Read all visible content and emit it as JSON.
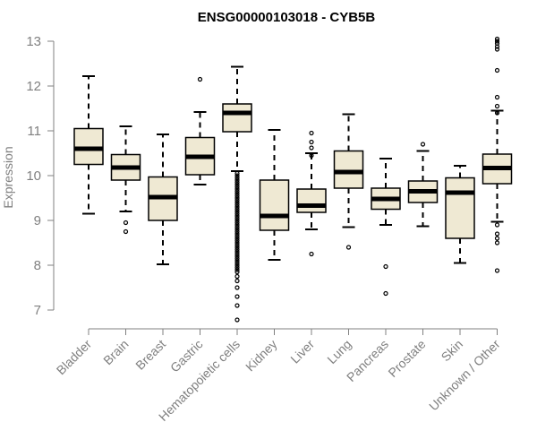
{
  "chart_data": {
    "type": "boxplot",
    "title": "ENSG00000103018 - CYB5B",
    "xlabel": "",
    "ylabel": "Expression",
    "ylim": [
      6.7,
      13.1
    ],
    "yticks": [
      7,
      8,
      9,
      10,
      11,
      12,
      13
    ],
    "grid": false,
    "colors": {
      "box_fill": "#efe9d3",
      "stroke": "#000000",
      "axis": "#808080"
    },
    "categories": [
      "Bladder",
      "Brain",
      "Breast",
      "Gastric",
      "Hematopoietic cells",
      "Kidney",
      "Liver",
      "Lung",
      "Pancreas",
      "Prostate",
      "Skin",
      "Unknown / Other"
    ],
    "boxes": [
      {
        "category": "Bladder",
        "whisker_low": 9.15,
        "q1": 10.25,
        "median": 10.6,
        "q3": 11.05,
        "whisker_high": 12.22,
        "outliers": []
      },
      {
        "category": "Brain",
        "whisker_low": 9.2,
        "q1": 9.9,
        "median": 10.18,
        "q3": 10.47,
        "whisker_high": 11.1,
        "outliers": [
          8.95,
          8.75
        ]
      },
      {
        "category": "Breast",
        "whisker_low": 8.02,
        "q1": 9.0,
        "median": 9.52,
        "q3": 9.97,
        "whisker_high": 10.92,
        "outliers": []
      },
      {
        "category": "Gastric",
        "whisker_low": 9.8,
        "q1": 10.02,
        "median": 10.42,
        "q3": 10.85,
        "whisker_high": 11.42,
        "outliers": [
          12.15
        ]
      },
      {
        "category": "Hematopoietic cells",
        "whisker_low": 10.1,
        "q1": 10.98,
        "median": 11.4,
        "q3": 11.6,
        "whisker_high": 12.43,
        "outliers": [
          10.05,
          10.0,
          9.95,
          9.9,
          9.85,
          9.8,
          9.75,
          9.7,
          9.65,
          9.6,
          9.55,
          9.5,
          9.45,
          9.4,
          9.35,
          9.3,
          9.25,
          9.2,
          9.15,
          9.1,
          9.05,
          9.0,
          8.95,
          8.9,
          8.85,
          8.8,
          8.75,
          8.7,
          8.65,
          8.6,
          8.55,
          8.5,
          8.45,
          8.4,
          8.35,
          8.3,
          8.25,
          8.2,
          8.15,
          8.1,
          8.05,
          8.0,
          7.95,
          7.9,
          7.85,
          7.75,
          7.65,
          7.5,
          7.3,
          7.1,
          6.78
        ]
      },
      {
        "category": "Kidney",
        "whisker_low": 8.12,
        "q1": 8.78,
        "median": 9.1,
        "q3": 9.9,
        "whisker_high": 11.02,
        "outliers": []
      },
      {
        "category": "Liver",
        "whisker_low": 8.8,
        "q1": 9.18,
        "median": 9.33,
        "q3": 9.7,
        "whisker_high": 10.5,
        "outliers": [
          10.95,
          10.75,
          10.62,
          10.45,
          8.25
        ]
      },
      {
        "category": "Lung",
        "whisker_low": 8.85,
        "q1": 9.72,
        "median": 10.08,
        "q3": 10.55,
        "whisker_high": 11.37,
        "outliers": [
          8.4
        ]
      },
      {
        "category": "Pancreas",
        "whisker_low": 8.9,
        "q1": 9.25,
        "median": 9.48,
        "q3": 9.72,
        "whisker_high": 10.38,
        "outliers": [
          7.97,
          7.37
        ]
      },
      {
        "category": "Prostate",
        "whisker_low": 8.87,
        "q1": 9.4,
        "median": 9.65,
        "q3": 9.88,
        "whisker_high": 10.55,
        "outliers": [
          10.7
        ]
      },
      {
        "category": "Skin",
        "whisker_low": 8.05,
        "q1": 8.6,
        "median": 9.62,
        "q3": 9.95,
        "whisker_high": 10.22,
        "outliers": []
      },
      {
        "category": "Unknown / Other",
        "whisker_low": 8.97,
        "q1": 9.82,
        "median": 10.17,
        "q3": 10.48,
        "whisker_high": 11.45,
        "outliers": [
          13.05,
          13.0,
          12.95,
          12.88,
          12.82,
          12.35,
          11.75,
          11.55,
          11.4,
          8.9,
          8.7,
          8.6,
          8.5,
          7.88
        ]
      }
    ]
  }
}
